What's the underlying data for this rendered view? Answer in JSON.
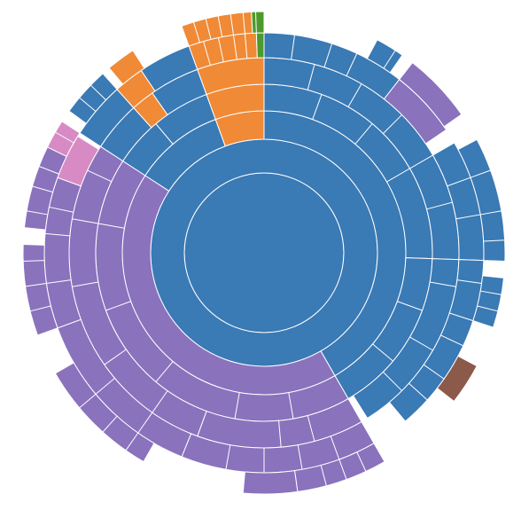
{
  "chart_data": {
    "type": "sunburst",
    "title": "",
    "colors": {
      "blue": "#3a7ab5",
      "purple": "#8a72bd",
      "orange": "#f08a36",
      "green": "#4d9a2c",
      "pink": "#d88ac4",
      "brown": "#8c5a4a"
    },
    "rings": [
      {
        "depth": 0,
        "segments": [
          {
            "start": 0,
            "end": 360,
            "color": "blue"
          }
        ]
      },
      {
        "depth": 1,
        "segments": [
          {
            "start": 0,
            "end": 360,
            "color": "blue"
          }
        ]
      },
      {
        "depth": 2,
        "segments": [
          {
            "start": 0,
            "end": 150,
            "color": "blue"
          },
          {
            "start": 150,
            "end": 303,
            "color": "purple"
          },
          {
            "start": 303,
            "end": 340,
            "color": "blue"
          },
          {
            "start": 340,
            "end": 360,
            "color": "orange"
          }
        ]
      },
      {
        "depth": 3,
        "segments": [
          {
            "start": 0,
            "end": 60,
            "color": "blue"
          },
          {
            "start": 60,
            "end": 92,
            "color": "blue"
          },
          {
            "start": 92,
            "end": 150,
            "color": "blue"
          },
          {
            "start": 150,
            "end": 303,
            "color": "purple"
          },
          {
            "start": 303,
            "end": 320,
            "color": "blue"
          },
          {
            "start": 320,
            "end": 340,
            "color": "blue"
          },
          {
            "start": 340,
            "end": 360,
            "color": "orange"
          }
        ]
      },
      {
        "depth": 4,
        "segments": [
          {
            "start": 0,
            "end": 60,
            "color": "blue"
          },
          {
            "start": 60,
            "end": 92,
            "color": "blue"
          },
          {
            "start": 92,
            "end": 148,
            "color": "blue"
          },
          {
            "start": 150,
            "end": 200,
            "color": "purple"
          },
          {
            "start": 200,
            "end": 303,
            "color": "purple"
          },
          {
            "start": 303,
            "end": 318,
            "color": "blue"
          },
          {
            "start": 318,
            "end": 325,
            "color": "orange"
          },
          {
            "start": 325,
            "end": 340,
            "color": "blue"
          },
          {
            "start": 340,
            "end": 360,
            "color": "orange"
          }
        ]
      },
      {
        "depth": 5,
        "segments": [
          {
            "start": 0,
            "end": 38,
            "color": "blue"
          },
          {
            "start": 38,
            "end": 56,
            "color": "purple"
          },
          {
            "start": 60,
            "end": 92,
            "color": "blue"
          },
          {
            "start": 92,
            "end": 108,
            "color": "blue"
          },
          {
            "start": 108,
            "end": 140,
            "color": "blue"
          },
          {
            "start": 150,
            "end": 180,
            "color": "purple"
          },
          {
            "start": 180,
            "end": 202,
            "color": "purple"
          },
          {
            "start": 202,
            "end": 250,
            "color": "purple"
          },
          {
            "start": 250,
            "end": 290,
            "color": "purple"
          },
          {
            "start": 290,
            "end": 302,
            "color": "pink"
          },
          {
            "start": 303,
            "end": 318,
            "color": "blue"
          },
          {
            "start": 318,
            "end": 326,
            "color": "orange"
          },
          {
            "start": 326,
            "end": 340,
            "color": "blue"
          },
          {
            "start": 340,
            "end": 358,
            "color": "orange"
          },
          {
            "start": 358,
            "end": 360,
            "color": "green"
          }
        ]
      },
      {
        "depth": 6,
        "segments": [
          {
            "start": 28,
            "end": 35,
            "color": "blue"
          },
          {
            "start": 38,
            "end": 55,
            "color": "purple"
          },
          {
            "start": 62,
            "end": 92,
            "color": "blue"
          },
          {
            "start": 96,
            "end": 108,
            "color": "blue"
          },
          {
            "start": 118,
            "end": 128,
            "color": "brown"
          },
          {
            "start": 150,
            "end": 172,
            "color": "purple"
          },
          {
            "start": 172,
            "end": 185,
            "color": "purple"
          },
          {
            "start": 210,
            "end": 240,
            "color": "purple"
          },
          {
            "start": 250,
            "end": 272,
            "color": "purple"
          },
          {
            "start": 276,
            "end": 296,
            "color": "purple"
          },
          {
            "start": 296,
            "end": 303,
            "color": "pink"
          },
          {
            "start": 306,
            "end": 318,
            "color": "blue"
          },
          {
            "start": 320,
            "end": 327,
            "color": "orange"
          },
          {
            "start": 340,
            "end": 357,
            "color": "orange"
          },
          {
            "start": 357,
            "end": 360,
            "color": "green"
          }
        ]
      }
    ]
  }
}
